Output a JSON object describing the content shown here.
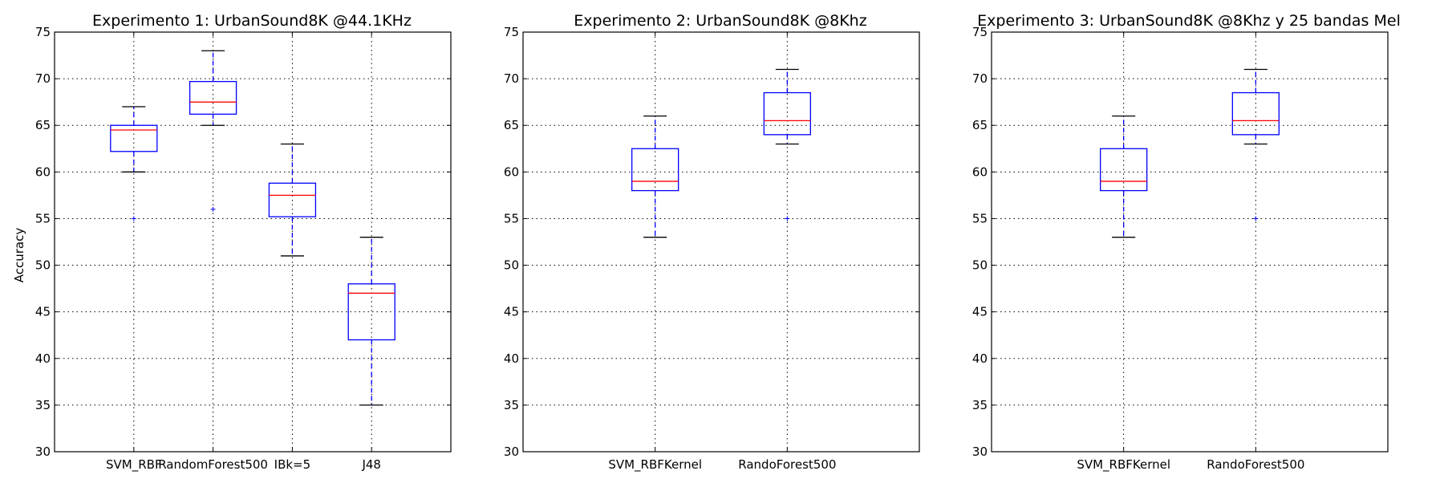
{
  "colors": {
    "box": "#0000ff",
    "median": "#ff0000",
    "whisker_cap": "#000000",
    "outlier": "#0000ff",
    "grid": "#000000",
    "background": "#ffffff"
  },
  "chart_data": [
    {
      "type": "box",
      "title": "Experimento 1: UrbanSound8K @44.1KHz",
      "ylabel": "Accuracy",
      "ylim": [
        30,
        75
      ],
      "yticks": [
        "30",
        "35",
        "40",
        "45",
        "50",
        "55",
        "60",
        "65",
        "70",
        "75"
      ],
      "grid": true,
      "categories": [
        "SVM_RBF",
        "RandomForest500",
        "IBk=5",
        "J48"
      ],
      "boxes": [
        {
          "whisker_low": 60,
          "q1": 62.2,
          "median": 64.5,
          "q3": 65,
          "whisker_high": 67,
          "outliers": [
            55
          ]
        },
        {
          "whisker_low": 65,
          "q1": 66.2,
          "median": 67.5,
          "q3": 69.7,
          "whisker_high": 73,
          "outliers": [
            56
          ]
        },
        {
          "whisker_low": 51,
          "q1": 55.2,
          "median": 57.5,
          "q3": 58.8,
          "whisker_high": 63,
          "outliers": []
        },
        {
          "whisker_low": 35,
          "q1": 42,
          "median": 47,
          "q3": 48,
          "whisker_high": 53,
          "outliers": []
        }
      ]
    },
    {
      "type": "box",
      "title": "Experimento 2: UrbanSound8K @8Khz",
      "ylabel": "",
      "ylim": [
        30,
        75
      ],
      "yticks": [
        "30",
        "35",
        "40",
        "45",
        "50",
        "55",
        "60",
        "65",
        "70",
        "75"
      ],
      "grid": true,
      "categories": [
        "SVM_RBFKernel",
        "RandoForest500"
      ],
      "boxes": [
        {
          "whisker_low": 53,
          "q1": 58,
          "median": 59,
          "q3": 62.5,
          "whisker_high": 66,
          "outliers": []
        },
        {
          "whisker_low": 63,
          "q1": 64,
          "median": 65.5,
          "q3": 68.5,
          "whisker_high": 71,
          "outliers": [
            55
          ]
        }
      ]
    },
    {
      "type": "box",
      "title": "Experimento 3: UrbanSound8K @8Khz y 25 bandas Mel",
      "ylabel": "",
      "ylim": [
        30,
        75
      ],
      "yticks": [
        "30",
        "35",
        "40",
        "45",
        "50",
        "55",
        "60",
        "65",
        "70",
        "75"
      ],
      "grid": true,
      "categories": [
        "SVM_RBFKernel",
        "RandoForest500"
      ],
      "boxes": [
        {
          "whisker_low": 53,
          "q1": 58,
          "median": 59,
          "q3": 62.5,
          "whisker_high": 66,
          "outliers": []
        },
        {
          "whisker_low": 63,
          "q1": 64,
          "median": 65.5,
          "q3": 68.5,
          "whisker_high": 71,
          "outliers": [
            55
          ]
        }
      ]
    }
  ]
}
